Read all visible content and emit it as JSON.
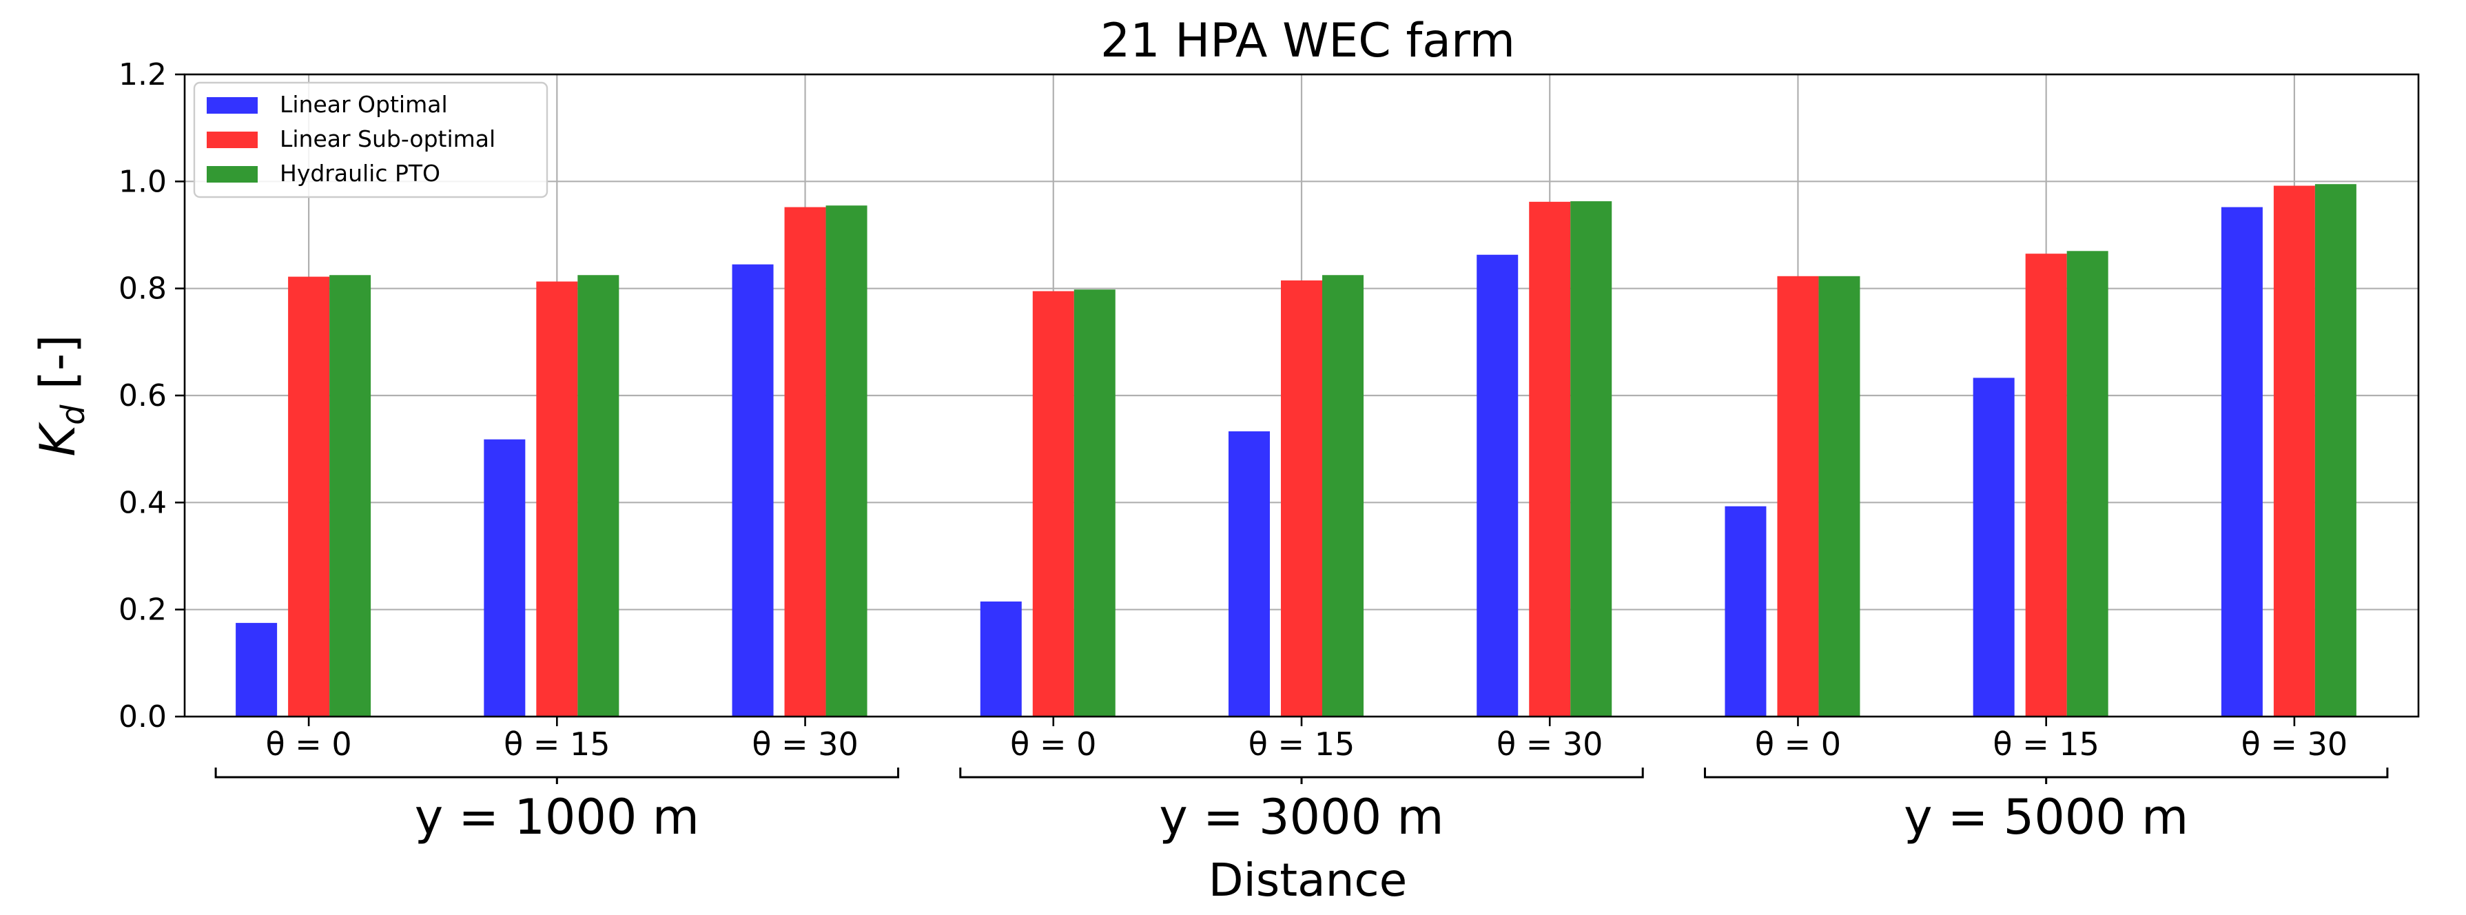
{
  "chart_data": {
    "type": "bar",
    "title": "21 HPA WEC farm",
    "xlabel": "Distance",
    "ylabel_main": "K",
    "ylabel_sub": "d",
    "ylabel_suffix": " [-]",
    "ylim": [
      0,
      1.2
    ],
    "yticks": [
      "0.0",
      "0.2",
      "0.4",
      "0.6",
      "0.8",
      "1.0",
      "1.2"
    ],
    "grid": true,
    "legend_position": "top-left",
    "categories": [
      "θ = 0",
      "θ = 15",
      "θ = 30",
      "θ = 0",
      "θ = 15",
      "θ = 30",
      "θ = 0",
      "θ = 15",
      "θ = 30"
    ],
    "groups": [
      "y = 1000 m",
      "y = 3000 m",
      "y = 5000 m"
    ],
    "series": [
      {
        "name": "Linear Optimal",
        "color": "#3333ff",
        "values": [
          0.175,
          0.518,
          0.845,
          0.215,
          0.533,
          0.863,
          0.393,
          0.633,
          0.952
        ]
      },
      {
        "name": "Linear Sub-optimal",
        "color": "#ff3333",
        "values": [
          0.822,
          0.813,
          0.952,
          0.795,
          0.815,
          0.962,
          0.823,
          0.865,
          0.992
        ]
      },
      {
        "name": "Hydraulic PTO",
        "color": "#339933",
        "values": [
          0.825,
          0.825,
          0.955,
          0.798,
          0.825,
          0.963,
          0.823,
          0.87,
          0.995
        ]
      }
    ]
  }
}
